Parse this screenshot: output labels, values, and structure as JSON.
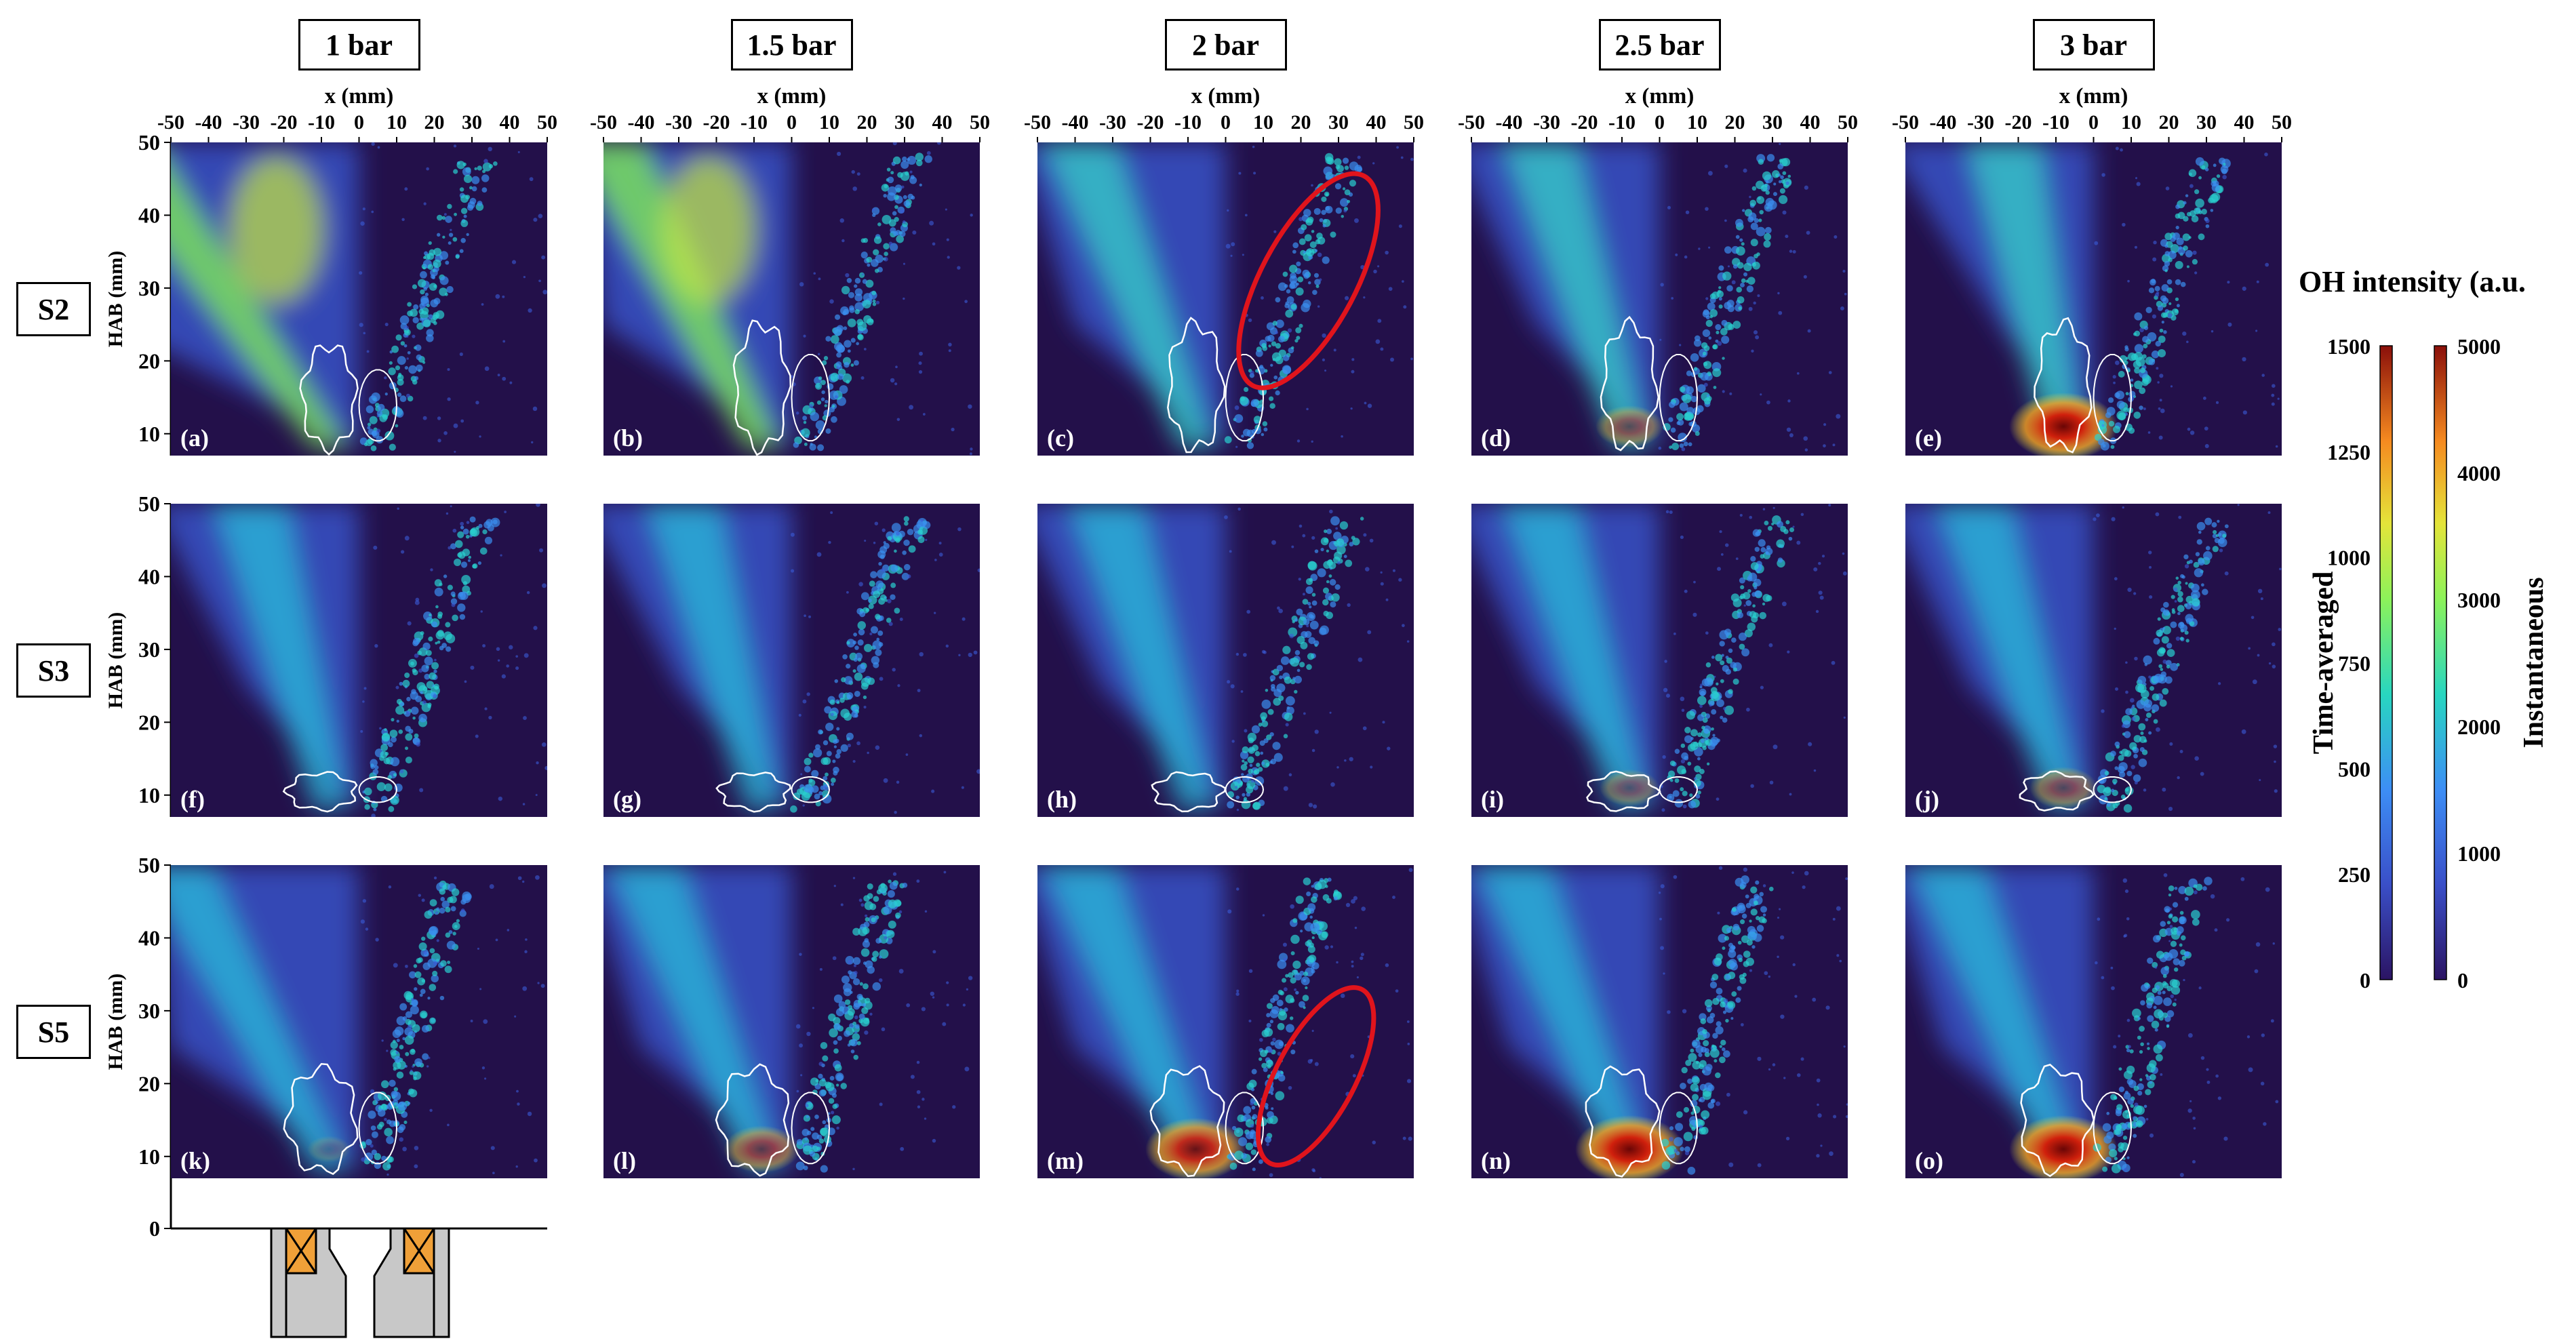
{
  "figure": {
    "columns": [
      "1 bar",
      "1.5 bar",
      "2 bar",
      "2.5 bar",
      "3 bar"
    ],
    "rows": [
      "S2",
      "S3",
      "S5"
    ],
    "panel_labels": [
      "(a)",
      "(b)",
      "(c)",
      "(d)",
      "(e)",
      "(f)",
      "(g)",
      "(h)",
      "(i)",
      "(j)",
      "(k)",
      "(l)",
      "(m)",
      "(n)",
      "(o)"
    ],
    "x_axis": {
      "label": "x (mm)",
      "ticks": [
        "-50",
        "-40",
        "-30",
        "-20",
        "-10",
        "0",
        "10",
        "20",
        "30",
        "40",
        "50"
      ],
      "range": [
        -50,
        50
      ]
    },
    "y_axis": {
      "label": "HAB (mm)",
      "ticks": [
        "10",
        "20",
        "30",
        "40",
        "50"
      ],
      "range": [
        7,
        50
      ],
      "extra_tick": "0"
    },
    "colorbar": {
      "title": "OH intensity (a.u.",
      "time_averaged": {
        "label": "Time-averaged",
        "ticks": [
          "0",
          "250",
          "500",
          "750",
          "1000",
          "1250",
          "1500"
        ],
        "range": [
          0,
          1500
        ]
      },
      "instantaneous": {
        "label": "Instantaneous",
        "ticks": [
          "0",
          "1000",
          "2000",
          "3000",
          "4000",
          "5000"
        ],
        "range": [
          0,
          5000
        ]
      }
    },
    "highlight_ellipses_panels": [
      "(c)",
      "(m)"
    ],
    "colors": {
      "background": "#23104a",
      "contour": "#ffffff",
      "highlight": "#e0141c",
      "nozzle_orange": "#f0a038",
      "nozzle_gray": "#c8c8c8"
    }
  }
}
